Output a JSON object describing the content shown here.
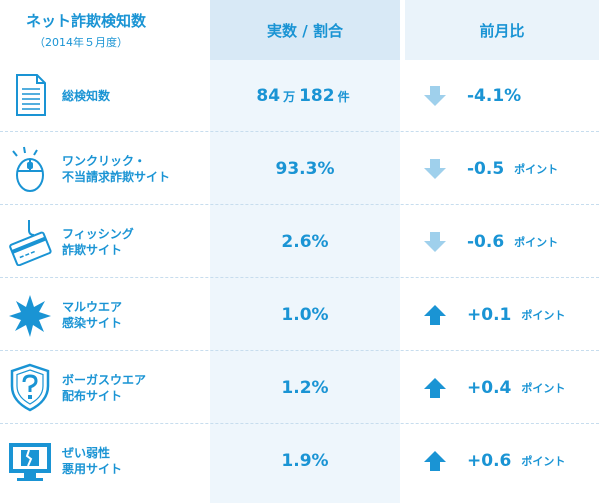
{
  "header": {
    "col1_title": "ネット詐欺検知数",
    "col1_sub": "（2014年５月度）",
    "col2_title": "実数 / 割合",
    "col3_title": "前月比"
  },
  "rows": [
    {
      "label1": "総検知数",
      "label2": "",
      "value": "84",
      "unit1": "万",
      "value2": "182",
      "unit2": "件",
      "change": "-4.1%",
      "change_unit": "",
      "direction": "down",
      "icon": "document-icon"
    },
    {
      "label1": "ワンクリック・",
      "label2": "不当請求詐欺サイト",
      "value": "93.3%",
      "change": "-0.5",
      "change_unit": "ポイント",
      "direction": "down",
      "icon": "mouse-icon"
    },
    {
      "label1": "フィッシング",
      "label2": "詐欺サイト",
      "value": "2.6%",
      "change": "-0.6",
      "change_unit": "ポイント",
      "direction": "down",
      "icon": "credit-card-hook-icon"
    },
    {
      "label1": "マルウエア",
      "label2": "感染サイト",
      "value": "1.0%",
      "change": "+0.1",
      "change_unit": "ポイント",
      "direction": "up",
      "icon": "virus-burst-icon"
    },
    {
      "label1": "ボーガスウエア",
      "label2": "配布サイト",
      "value": "1.2%",
      "change": "+0.4",
      "change_unit": "ポイント",
      "direction": "up",
      "icon": "shield-question-icon"
    },
    {
      "label1": "ぜい弱性",
      "label2": "悪用サイト",
      "value": "1.9%",
      "change": "+0.6",
      "change_unit": "ポイント",
      "direction": "up",
      "icon": "broken-monitor-icon"
    }
  ],
  "colors": {
    "accent": "#1a94d4",
    "down_arrow": "#9fd0ec",
    "up_arrow": "#1a94d4"
  }
}
